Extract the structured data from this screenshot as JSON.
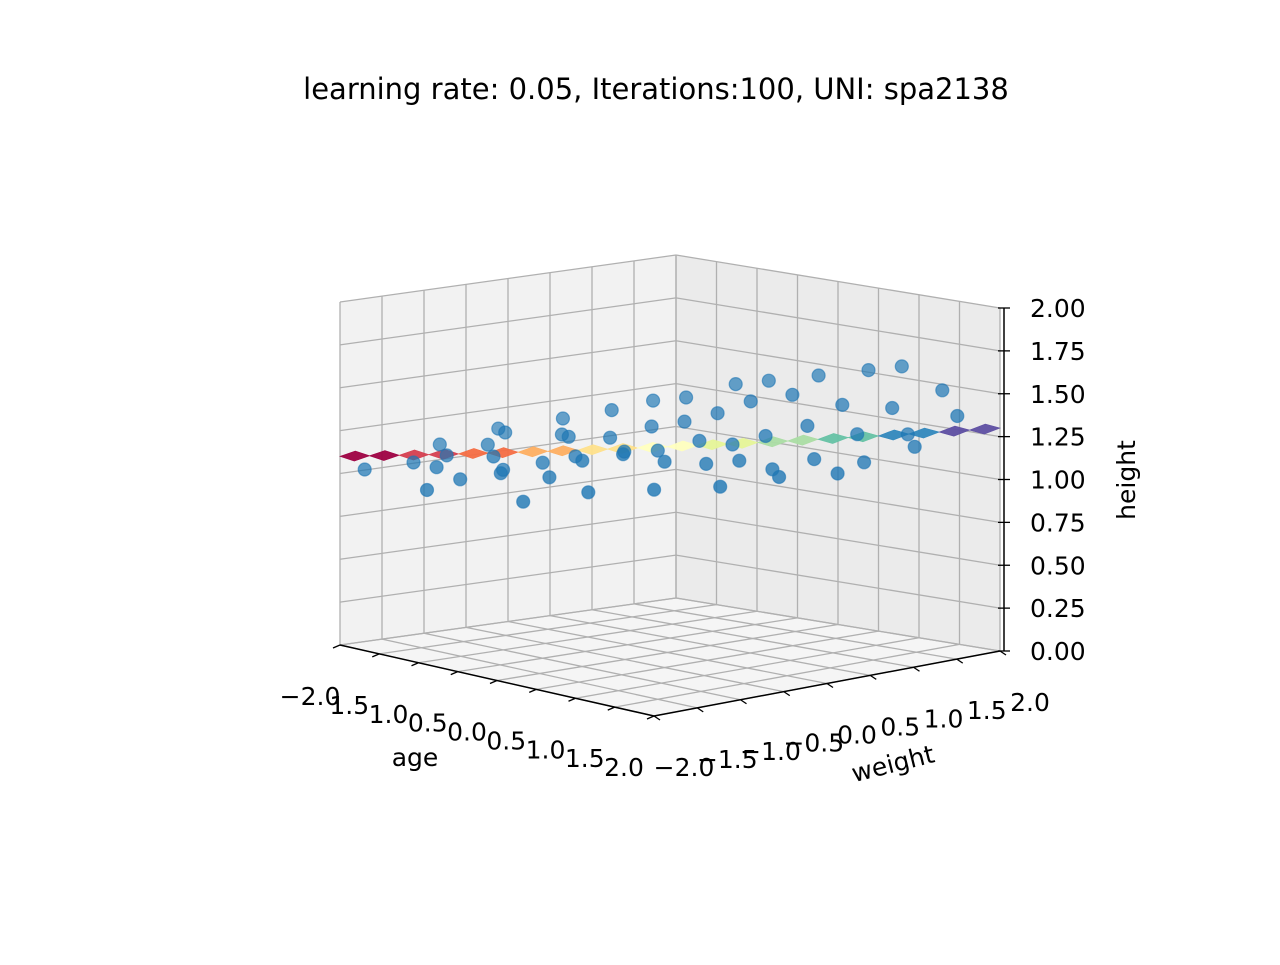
{
  "chart_data": {
    "type": "scatter3d",
    "title": "learning rate: 0.05, Iterations:100, UNI: spa2138",
    "xlabel": "age",
    "ylabel": "weight",
    "zlabel": "height",
    "xlim": [
      -2.0,
      2.0
    ],
    "ylim": [
      -2.0,
      2.0
    ],
    "zlim": [
      0.0,
      2.0
    ],
    "xticks": [
      "−2.0",
      "1.5",
      "1.0",
      "0.5",
      "0.0",
      "0.5",
      "1.0",
      "1.5",
      "2.0"
    ],
    "yticks": [
      "−2.0",
      "−1.5",
      "−1.0",
      "−0.5",
      "0.0",
      "0.5",
      "1.0",
      "1.5",
      "2.0"
    ],
    "zticks": [
      "0.00",
      "0.25",
      "0.50",
      "0.75",
      "1.00",
      "1.25",
      "1.50",
      "1.75",
      "2.00"
    ],
    "grid": true,
    "point_color": "#1f77b4",
    "surface_colormap": "Spectral",
    "fit_plane": {
      "intercept": 1.2,
      "coef_age": -0.05,
      "coef_weight": 0.1
    },
    "points": [
      [
        -1.6,
        -1.5,
        1.07
      ],
      [
        -1.2,
        -1.6,
        1.09
      ],
      [
        -0.9,
        -1.6,
        1.05
      ],
      [
        -1.5,
        -1.2,
        1.1
      ],
      [
        -1.3,
        -0.9,
        1.16
      ],
      [
        -0.8,
        -1.3,
        1.17
      ],
      [
        -1.0,
        -1.0,
        1.05
      ],
      [
        -0.6,
        -1.4,
        1.1
      ],
      [
        -1.4,
        -0.6,
        1.2
      ],
      [
        -0.5,
        -1.0,
        1.14
      ],
      [
        -0.2,
        -1.2,
        1.1
      ],
      [
        -0.9,
        -0.4,
        1.22
      ],
      [
        -0.6,
        -0.6,
        1.25
      ],
      [
        -0.3,
        -0.8,
        1.18
      ],
      [
        0.0,
        -1.0,
        1.2
      ],
      [
        -1.1,
        -0.2,
        1.28
      ],
      [
        -0.4,
        -0.3,
        1.24
      ],
      [
        0.1,
        -0.6,
        1.23
      ],
      [
        0.3,
        -0.8,
        1.25
      ],
      [
        -0.7,
        0.0,
        1.35
      ],
      [
        -0.2,
        0.0,
        1.3
      ],
      [
        0.2,
        -0.3,
        1.22
      ],
      [
        0.5,
        -0.5,
        1.2
      ],
      [
        -0.5,
        0.3,
        1.4
      ],
      [
        0.0,
        0.2,
        1.33
      ],
      [
        0.4,
        0.0,
        1.27
      ],
      [
        0.7,
        -0.2,
        1.18
      ],
      [
        -0.3,
        0.5,
        1.42
      ],
      [
        0.2,
        0.4,
        1.38
      ],
      [
        0.6,
        0.2,
        1.25
      ],
      [
        0.9,
        0.0,
        1.2
      ],
      [
        0.0,
        0.8,
        1.5
      ],
      [
        0.4,
        0.6,
        1.45
      ],
      [
        0.8,
        0.4,
        1.3
      ],
      [
        1.1,
        0.2,
        1.15
      ],
      [
        0.2,
        1.0,
        1.52
      ],
      [
        0.6,
        0.9,
        1.48
      ],
      [
        1.0,
        0.7,
        1.35
      ],
      [
        1.3,
        0.5,
        1.2
      ],
      [
        0.5,
        1.3,
        1.55
      ],
      [
        0.9,
        1.2,
        1.42
      ],
      [
        1.3,
        1.0,
        1.3
      ],
      [
        1.6,
        0.8,
        1.18
      ],
      [
        0.8,
        1.6,
        1.58
      ],
      [
        1.2,
        1.5,
        1.4
      ],
      [
        1.5,
        1.4,
        1.28
      ],
      [
        1.8,
        1.2,
        1.25
      ],
      [
        1.0,
        1.8,
        1.6
      ],
      [
        1.5,
        1.8,
        1.5
      ],
      [
        1.9,
        1.6,
        1.4
      ],
      [
        -1.8,
        -1.0,
        1.12
      ],
      [
        -1.7,
        -0.4,
        1.18
      ],
      [
        -0.1,
        -1.6,
        1.0
      ],
      [
        0.4,
        -1.3,
        1.08
      ],
      [
        0.8,
        -0.9,
        1.1
      ],
      [
        1.2,
        -0.5,
        1.12
      ],
      [
        1.4,
        0.0,
        1.15
      ],
      [
        1.7,
        0.4,
        1.16
      ],
      [
        -1.9,
        -1.8,
        1.02
      ],
      [
        -1.0,
        -1.9,
        1.0
      ]
    ]
  }
}
